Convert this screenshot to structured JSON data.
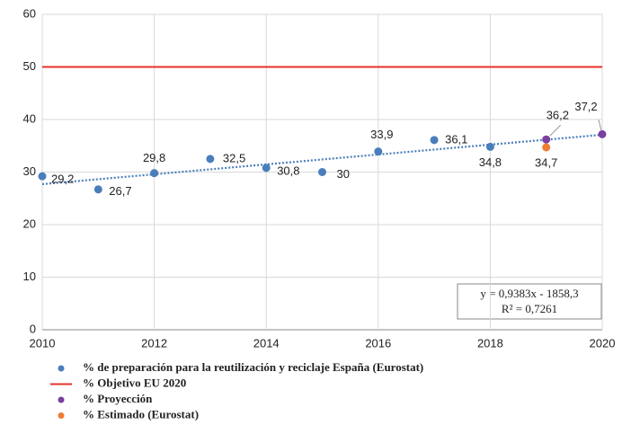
{
  "chart_data": {
    "type": "scatter",
    "xlim": [
      2010,
      2020
    ],
    "xticks": [
      2010,
      2012,
      2014,
      2016,
      2018,
      2020
    ],
    "ylim": [
      0,
      60
    ],
    "yticks": [
      0,
      10,
      20,
      30,
      40,
      50,
      60
    ],
    "grid": true,
    "series": [
      {
        "name": "% de preparación para la reutilización y reciclaje España (Eurostat)",
        "type": "scatter",
        "color": "#4a7ebb",
        "x": [
          2010,
          2011,
          2012,
          2013,
          2014,
          2015,
          2016,
          2017,
          2018
        ],
        "values": [
          29.2,
          26.7,
          29.8,
          32.5,
          30.8,
          30,
          33.9,
          36.1,
          34.8
        ],
        "value_labels": [
          "29,2",
          "26,7",
          "29,8",
          "32,5",
          "30,8",
          "30",
          "33,9",
          "36,1",
          "34,8"
        ]
      },
      {
        "name": "% Objetivo EU 2020",
        "type": "line",
        "color": "#e8302a",
        "x": [
          2010,
          2020
        ],
        "values": [
          50,
          50
        ]
      },
      {
        "name": "% Proyección",
        "type": "scatter",
        "color": "#7a3fa0",
        "x": [
          2019,
          2020
        ],
        "values": [
          36.2,
          37.2
        ],
        "value_labels": [
          "36,2",
          "37,2"
        ]
      },
      {
        "name": "% Estimado (Eurostat)",
        "type": "scatter",
        "color": "#ed7d31",
        "x": [
          2019
        ],
        "values": [
          34.7
        ],
        "value_labels": [
          "34,7"
        ]
      }
    ],
    "trendline": {
      "color": "#4a7ebb",
      "x": [
        2010,
        2020
      ],
      "values": [
        27.7,
        37.1
      ],
      "equation": "y = 0,9383x - 1858,3",
      "r2": "R² = 0,7261"
    }
  }
}
